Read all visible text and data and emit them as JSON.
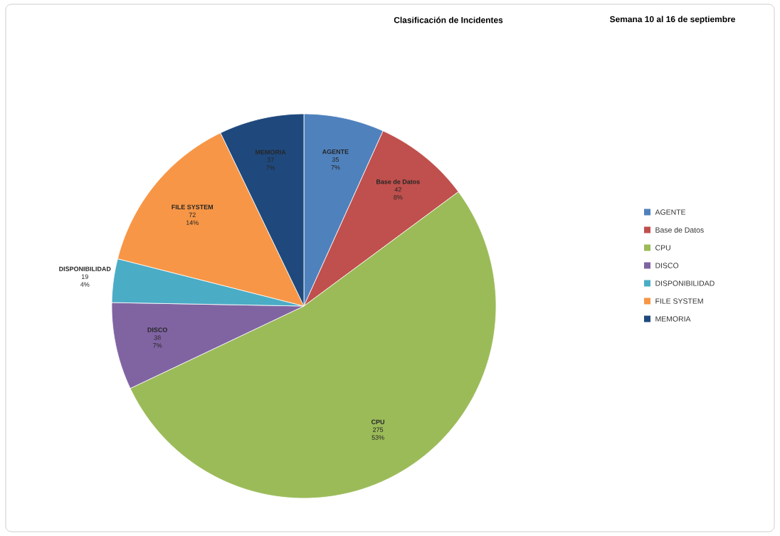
{
  "chart_data": {
    "type": "pie",
    "title": "Clasificación de Incidentes",
    "subtitle": "Semana 10 al 16 de septiembre",
    "categories": [
      "AGENTE",
      "Base de Datos",
      "CPU",
      "DISCO",
      "DISPONIBILIDAD",
      "FILE SYSTEM",
      "MEMORIA"
    ],
    "values": [
      35,
      42,
      275,
      38,
      19,
      72,
      37
    ],
    "colors": [
      "#4f81bd",
      "#c0504d",
      "#9bbb59",
      "#8064a2",
      "#4bacc6",
      "#f79646",
      "#1f497d"
    ],
    "annotations": [
      "7%",
      "8%",
      "53%",
      "7%",
      "4%",
      "14%",
      "7%"
    ],
    "data_labels": true,
    "legend": "right"
  }
}
